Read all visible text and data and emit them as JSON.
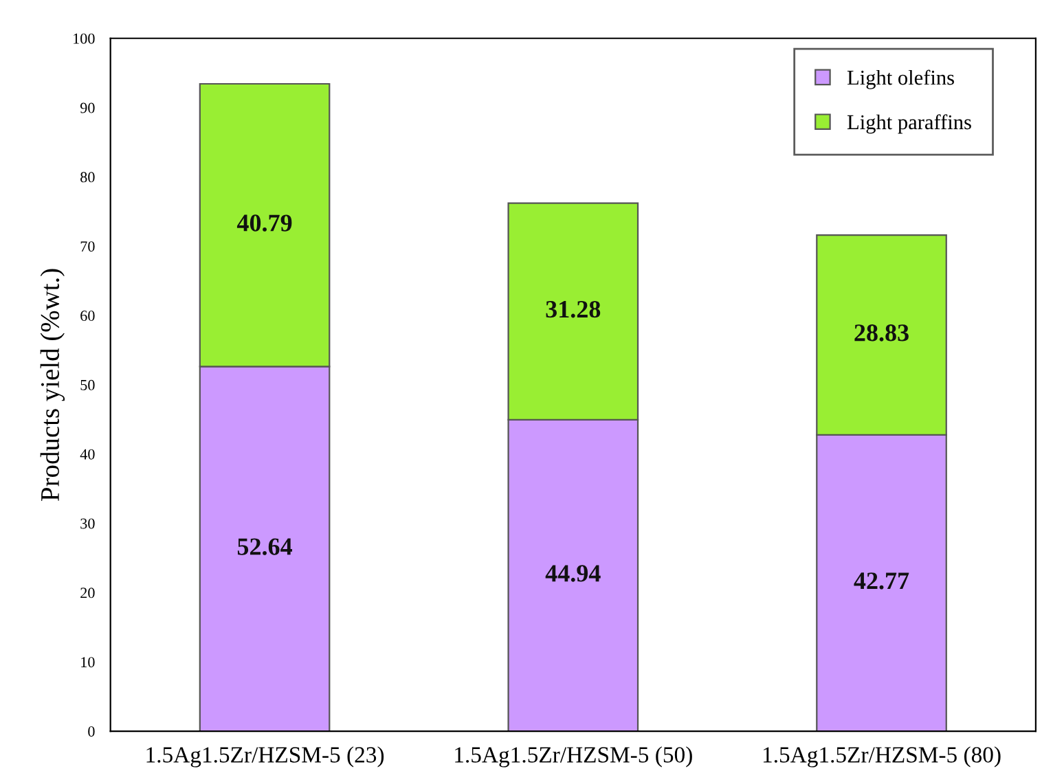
{
  "chart_data": {
    "type": "bar",
    "stacked": true,
    "ylabel": "Products yield (%wt.)",
    "categories": [
      "1.5Ag1.5Zr/HZSM-5 (23)",
      "1.5Ag1.5Zr/HZSM-5 (50)",
      "1.5Ag1.5Zr/HZSM-5 (80)"
    ],
    "series": [
      {
        "name": "Light olefins",
        "color": "#cc99ff",
        "values": [
          52.64,
          44.94,
          42.77
        ]
      },
      {
        "name": "Light paraffins",
        "color": "#99ee33",
        "values": [
          40.79,
          31.28,
          28.83
        ]
      }
    ],
    "ylim": [
      0,
      100
    ],
    "yticks": [
      0,
      10,
      20,
      30,
      40,
      50,
      60,
      70,
      80,
      90,
      100
    ],
    "data_labels": true,
    "legend": "top right",
    "grid": false
  }
}
